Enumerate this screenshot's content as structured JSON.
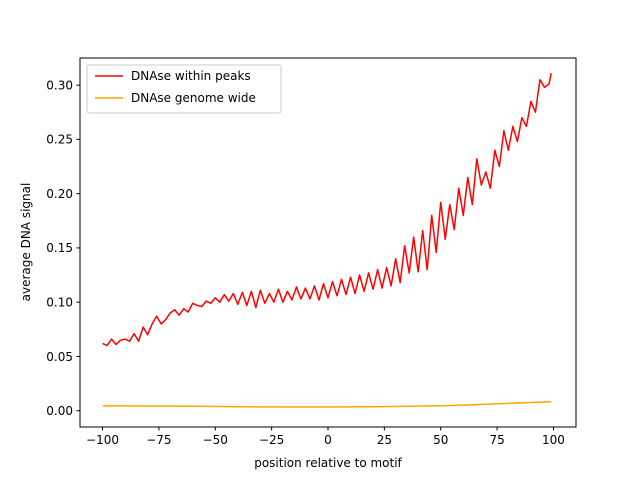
{
  "chart_data": {
    "type": "line",
    "title": "",
    "xlabel": "position relative to motif",
    "ylabel": "average DNA signal",
    "xlim": [
      -110,
      110
    ],
    "ylim": [
      -0.015,
      0.325
    ],
    "xticks": [
      -100,
      -75,
      -50,
      -25,
      0,
      25,
      50,
      75,
      100
    ],
    "xtick_labels": [
      "−100",
      "−75",
      "−50",
      "−25",
      "0",
      "25",
      "50",
      "75",
      "100"
    ],
    "yticks": [
      0.0,
      0.05,
      0.1,
      0.15,
      0.2,
      0.25,
      0.3
    ],
    "ytick_labels": [
      "0.00",
      "0.05",
      "0.10",
      "0.15",
      "0.20",
      "0.25",
      "0.30"
    ],
    "grid": false,
    "legend_position": "top-left",
    "series": [
      {
        "name": "DNAse within peaks",
        "color": "#ff0000",
        "x": [
          -100,
          -98,
          -96,
          -94,
          -92,
          -90,
          -88,
          -86,
          -84,
          -82,
          -80,
          -78,
          -76,
          -74,
          -72,
          -70,
          -68,
          -66,
          -64,
          -62,
          -60,
          -58,
          -56,
          -54,
          -52,
          -50,
          -48,
          -46,
          -44,
          -42,
          -40,
          -38,
          -36,
          -34,
          -32,
          -30,
          -28,
          -26,
          -24,
          -22,
          -20,
          -18,
          -16,
          -14,
          -12,
          -10,
          -8,
          -6,
          -4,
          -2,
          0,
          2,
          4,
          6,
          8,
          10,
          12,
          14,
          16,
          18,
          20,
          22,
          24,
          26,
          28,
          30,
          32,
          34,
          36,
          38,
          40,
          42,
          44,
          46,
          48,
          50,
          52,
          54,
          56,
          58,
          60,
          62,
          64,
          66,
          68,
          70,
          72,
          74,
          76,
          78,
          80,
          82,
          84,
          86,
          88,
          90,
          92,
          94,
          96,
          98,
          99
        ],
        "y": [
          0.062,
          0.06,
          0.066,
          0.061,
          0.065,
          0.066,
          0.064,
          0.071,
          0.064,
          0.077,
          0.07,
          0.08,
          0.087,
          0.08,
          0.084,
          0.09,
          0.093,
          0.088,
          0.094,
          0.091,
          0.099,
          0.097,
          0.096,
          0.101,
          0.099,
          0.104,
          0.1,
          0.107,
          0.101,
          0.108,
          0.098,
          0.109,
          0.097,
          0.11,
          0.095,
          0.111,
          0.099,
          0.108,
          0.1,
          0.112,
          0.1,
          0.11,
          0.102,
          0.114,
          0.103,
          0.113,
          0.103,
          0.115,
          0.102,
          0.117,
          0.104,
          0.119,
          0.106,
          0.121,
          0.107,
          0.123,
          0.108,
          0.125,
          0.11,
          0.127,
          0.112,
          0.13,
          0.113,
          0.132,
          0.115,
          0.14,
          0.118,
          0.152,
          0.127,
          0.16,
          0.128,
          0.166,
          0.13,
          0.18,
          0.146,
          0.192,
          0.158,
          0.19,
          0.167,
          0.205,
          0.18,
          0.215,
          0.19,
          0.232,
          0.208,
          0.22,
          0.205,
          0.24,
          0.225,
          0.258,
          0.24,
          0.262,
          0.248,
          0.27,
          0.262,
          0.285,
          0.275,
          0.305,
          0.298,
          0.301,
          0.311
        ]
      },
      {
        "name": "DNAse genome wide",
        "color": "#ffa500",
        "x": [
          -100,
          -90,
          -80,
          -70,
          -60,
          -50,
          -40,
          -30,
          -20,
          -10,
          0,
          10,
          20,
          30,
          40,
          50,
          60,
          70,
          80,
          90,
          99
        ],
        "y": [
          0.0045,
          0.0045,
          0.0044,
          0.0043,
          0.0041,
          0.0039,
          0.0037,
          0.0035,
          0.0034,
          0.0034,
          0.0034,
          0.0035,
          0.0037,
          0.0039,
          0.0042,
          0.0046,
          0.0052,
          0.006,
          0.0068,
          0.0076,
          0.0083
        ]
      }
    ]
  }
}
